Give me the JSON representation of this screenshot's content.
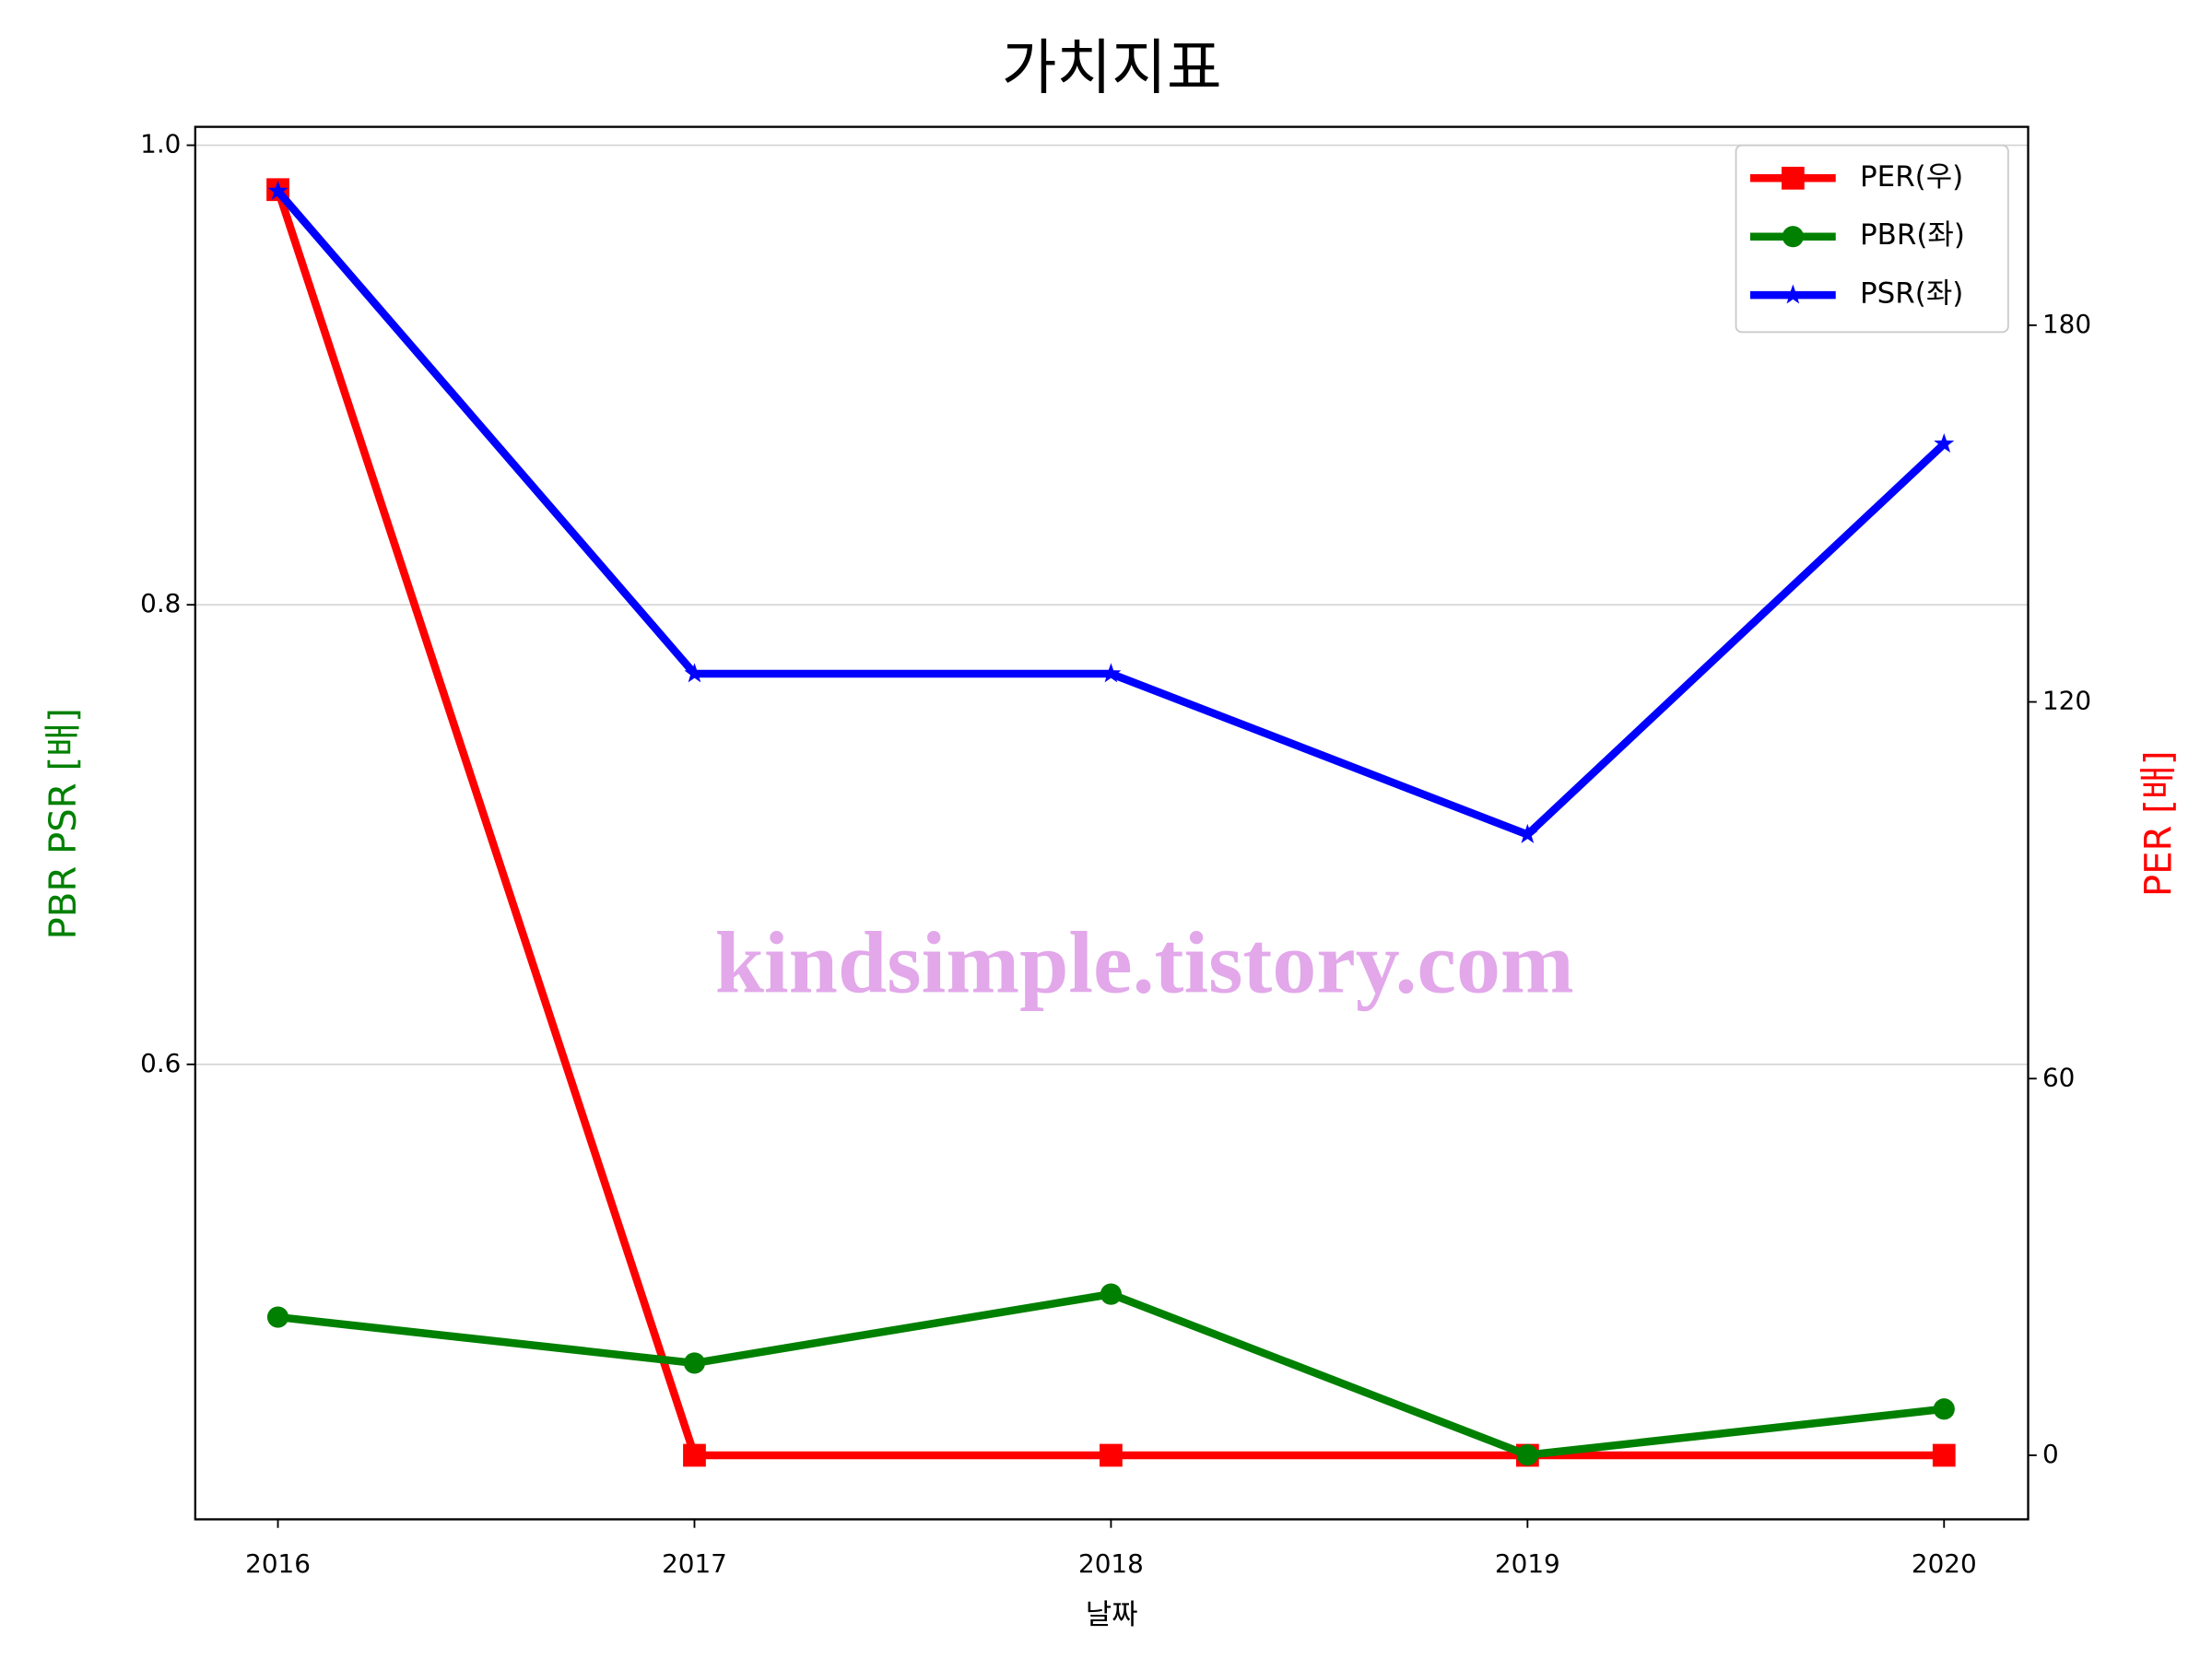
{
  "chart_data": {
    "type": "line",
    "title": "가치지표",
    "xlabel": "날짜",
    "ylabel": "PBR PSR [배]",
    "ylabel_color": "#008000",
    "y2label": "PER [배]",
    "y2label_color": "#ff0000",
    "categories": [
      "2016",
      "2017",
      "2018",
      "2019",
      "2020"
    ],
    "series": [
      {
        "name": "PER(우)",
        "color": "#ff0000",
        "marker": "square",
        "axis": "y2",
        "values": [
          201.6,
          0,
          0,
          0,
          0
        ]
      },
      {
        "name": "PBR(좌)",
        "color": "#008000",
        "marker": "circle",
        "values": [
          0.49,
          0.47,
          0.5,
          0.43,
          0.45
        ]
      },
      {
        "name": "PSR(좌)",
        "color": "#0000ff",
        "marker": "star",
        "values": [
          0.98,
          0.77,
          0.77,
          0.7,
          0.87
        ]
      }
    ],
    "ylim": [
      0.402,
      1.008
    ],
    "yticks": [
      {
        "value": 0.6,
        "label": "0.6"
      },
      {
        "value": 0.8,
        "label": "0.8"
      },
      {
        "value": 1.0,
        "label": "1.0"
      }
    ],
    "y2lim": [
      -10.2,
      211.6
    ],
    "y2ticks": [
      0,
      60,
      120,
      180
    ],
    "grid": true,
    "legend": "upper right",
    "watermark": "kindsimple.tistory.com"
  }
}
